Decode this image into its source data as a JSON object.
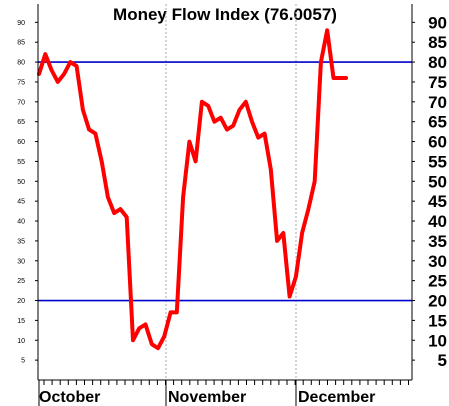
{
  "chart_data": {
    "type": "line",
    "title": "Money Flow Index (76.0057)",
    "xlabel": "",
    "ylabel": "",
    "ylim": [
      0,
      95
    ],
    "y_ticks": [
      5,
      10,
      15,
      20,
      25,
      30,
      35,
      40,
      45,
      50,
      55,
      60,
      65,
      70,
      75,
      80,
      85,
      90
    ],
    "x_month_labels": [
      "October",
      "November",
      "December"
    ],
    "reference_lines": [
      80,
      20
    ],
    "grid": "vertical dotted lines at month starts",
    "colors": {
      "line": "#ff0000",
      "reference": "#0000cc",
      "grid": "#aaaaaa"
    },
    "series": [
      {
        "values": [
          77,
          82,
          78,
          75,
          77,
          80,
          79,
          68,
          63,
          62,
          55,
          46,
          42,
          43,
          41,
          10,
          13,
          14,
          9,
          8,
          11,
          17,
          17,
          46,
          60,
          55,
          70,
          69,
          65,
          66,
          63,
          64,
          68,
          70,
          65,
          61,
          62,
          53,
          35,
          37,
          21,
          26,
          37,
          43,
          50,
          80,
          88,
          76,
          76,
          76
        ]
      }
    ]
  }
}
